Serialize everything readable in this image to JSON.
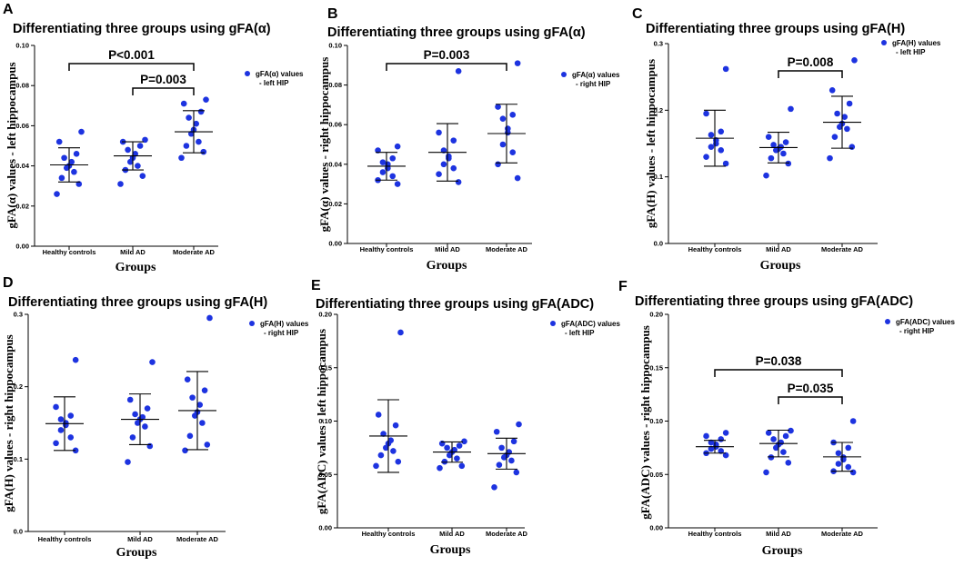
{
  "chart_data": [
    {
      "type": "scatter",
      "panel": "A",
      "title": "Differentiating three groups using gFA(α)",
      "xlabel": "Groups",
      "ylabel": "gFA(α) values - left hippocampus",
      "categories": [
        "Healthy controls",
        "Mild AD",
        "Moderate AD"
      ],
      "ylim": [
        0,
        0.1
      ],
      "ytick_labels": [
        "0.00",
        "0.02",
        "0.04",
        "0.06",
        "0.08",
        "0.10"
      ],
      "legend": "gFA(α) values - left HIP",
      "series": [
        {
          "name": "Healthy controls",
          "values": [
            0.057,
            0.052,
            0.046,
            0.044,
            0.042,
            0.04,
            0.039,
            0.037,
            0.034,
            0.031,
            0.026
          ],
          "mean": 0.0405,
          "sd": 0.0085
        },
        {
          "name": "Mild AD",
          "values": [
            0.053,
            0.052,
            0.05,
            0.048,
            0.046,
            0.044,
            0.042,
            0.04,
            0.038,
            0.035,
            0.031
          ],
          "mean": 0.045,
          "sd": 0.007
        },
        {
          "name": "Moderate AD",
          "values": [
            0.073,
            0.071,
            0.067,
            0.064,
            0.061,
            0.058,
            0.056,
            0.052,
            0.05,
            0.047,
            0.044
          ],
          "mean": 0.057,
          "sd": 0.0105
        }
      ],
      "significance": [
        {
          "from": 0,
          "to": 2,
          "label": "P<0.001"
        },
        {
          "from": 1,
          "to": 2,
          "label": "P=0.003"
        }
      ]
    },
    {
      "type": "scatter",
      "panel": "B",
      "title": "Differentiating three groups using gFA(α)",
      "xlabel": "Groups",
      "ylabel": "gFA(α) values - right hippocampus",
      "categories": [
        "Healthy controls",
        "Mild AD",
        "Moderate AD"
      ],
      "ylim": [
        0,
        0.1
      ],
      "ytick_labels": [
        "0.00",
        "0.02",
        "0.04",
        "0.06",
        "0.08",
        "0.10"
      ],
      "legend": "gFA(α) values - right HIP",
      "series": [
        {
          "name": "Healthy controls",
          "values": [
            0.049,
            0.047,
            0.043,
            0.041,
            0.04,
            0.038,
            0.036,
            0.034,
            0.032,
            0.03
          ],
          "mean": 0.039,
          "sd": 0.007
        },
        {
          "name": "Mild AD",
          "values": [
            0.087,
            0.056,
            0.052,
            0.047,
            0.044,
            0.043,
            0.04,
            0.038,
            0.035,
            0.031
          ],
          "mean": 0.046,
          "sd": 0.0145
        },
        {
          "name": "Moderate AD",
          "values": [
            0.091,
            0.069,
            0.065,
            0.063,
            0.058,
            0.056,
            0.05,
            0.046,
            0.04,
            0.033
          ],
          "mean": 0.0555,
          "sd": 0.0148
        }
      ],
      "significance": [
        {
          "from": 0,
          "to": 2,
          "label": "P=0.003"
        }
      ]
    },
    {
      "type": "scatter",
      "panel": "C",
      "title": "Differentiating three groups using gFA(H)",
      "xlabel": "Groups",
      "ylabel": "gFA(H) values - left hippocampus",
      "categories": [
        "Healthy controls",
        "Mild AD",
        "Moderate AD"
      ],
      "ylim": [
        0,
        0.3
      ],
      "ytick_labels": [
        "0.0",
        "0.1",
        "0.2",
        "0.3"
      ],
      "legend": "gFA(H) values - left HIP",
      "series": [
        {
          "name": "Healthy controls",
          "values": [
            0.262,
            0.195,
            0.168,
            0.163,
            0.155,
            0.15,
            0.145,
            0.14,
            0.13,
            0.12
          ],
          "mean": 0.158,
          "sd": 0.042
        },
        {
          "name": "Mild AD",
          "values": [
            0.202,
            0.16,
            0.152,
            0.148,
            0.145,
            0.142,
            0.14,
            0.135,
            0.128,
            0.12,
            0.102
          ],
          "mean": 0.144,
          "sd": 0.023
        },
        {
          "name": "Moderate AD",
          "values": [
            0.275,
            0.23,
            0.21,
            0.195,
            0.19,
            0.18,
            0.175,
            0.172,
            0.16,
            0.145,
            0.128
          ],
          "mean": 0.182,
          "sd": 0.039
        }
      ],
      "significance": [
        {
          "from": 1,
          "to": 2,
          "label": "P=0.008"
        }
      ]
    },
    {
      "type": "scatter",
      "panel": "D",
      "title": "Differentiating three groups using gFA(H)",
      "xlabel": "Groups",
      "ylabel": "gFA(H) values - right hippocampus",
      "categories": [
        "Healthy controls",
        "Mild AD",
        "Moderate AD"
      ],
      "ylim": [
        0,
        0.3
      ],
      "ytick_labels": [
        "0.0",
        "0.1",
        "0.2",
        "0.3"
      ],
      "legend": "gFA(H) values - right HIP",
      "series": [
        {
          "name": "Healthy controls",
          "values": [
            0.237,
            0.172,
            0.16,
            0.155,
            0.15,
            0.147,
            0.14,
            0.13,
            0.122,
            0.112
          ],
          "mean": 0.149,
          "sd": 0.037
        },
        {
          "name": "Mild AD",
          "values": [
            0.234,
            0.182,
            0.17,
            0.162,
            0.158,
            0.155,
            0.15,
            0.145,
            0.13,
            0.118,
            0.096
          ],
          "mean": 0.155,
          "sd": 0.035
        },
        {
          "name": "Moderate AD",
          "values": [
            0.295,
            0.21,
            0.195,
            0.185,
            0.175,
            0.165,
            0.16,
            0.15,
            0.132,
            0.12,
            0.112
          ],
          "mean": 0.167,
          "sd": 0.054
        }
      ],
      "significance": []
    },
    {
      "type": "scatter",
      "panel": "E",
      "title": "Differentiating three groups using gFA(ADC)",
      "xlabel": "Groups",
      "ylabel": "gFA(ADC) values - left hippocampus",
      "categories": [
        "Healthy controls",
        "Mild AD",
        "Moderate AD"
      ],
      "ylim": [
        0,
        0.2
      ],
      "ytick_labels": [
        "0.00",
        "0.05",
        "0.10",
        "0.15",
        "0.20"
      ],
      "legend": "gFA(ADC) values - left HIP",
      "series": [
        {
          "name": "Healthy controls",
          "values": [
            0.183,
            0.106,
            0.096,
            0.088,
            0.082,
            0.079,
            0.075,
            0.072,
            0.068,
            0.062,
            0.058
          ],
          "mean": 0.086,
          "sd": 0.034
        },
        {
          "name": "Mild AD",
          "values": [
            0.081,
            0.079,
            0.077,
            0.075,
            0.073,
            0.071,
            0.068,
            0.065,
            0.062,
            0.058,
            0.056
          ],
          "mean": 0.071,
          "sd": 0.0095
        },
        {
          "name": "Moderate AD",
          "values": [
            0.097,
            0.09,
            0.081,
            0.075,
            0.071,
            0.068,
            0.066,
            0.063,
            0.059,
            0.052,
            0.038
          ],
          "mean": 0.0695,
          "sd": 0.0145
        }
      ],
      "significance": []
    },
    {
      "type": "scatter",
      "panel": "F",
      "title": "Differentiating three groups using gFA(ADC)",
      "xlabel": "Groups",
      "ylabel": "gFA(ADC) values - right hippocampus",
      "categories": [
        "Healthy controls",
        "Mild AD",
        "Moderate AD"
      ],
      "ylim": [
        0,
        0.2
      ],
      "ytick_labels": [
        "0.00",
        "0.05",
        "0.10",
        "0.15",
        "0.20"
      ],
      "legend": "gFA(ADC) values - right HIP",
      "series": [
        {
          "name": "Healthy controls",
          "values": [
            0.089,
            0.086,
            0.083,
            0.08,
            0.078,
            0.076,
            0.074,
            0.072,
            0.07,
            0.068
          ],
          "mean": 0.076,
          "sd": 0.006
        },
        {
          "name": "Mild AD",
          "values": [
            0.091,
            0.089,
            0.086,
            0.083,
            0.08,
            0.078,
            0.075,
            0.071,
            0.066,
            0.061,
            0.052
          ],
          "mean": 0.079,
          "sd": 0.0125
        },
        {
          "name": "Moderate AD",
          "values": [
            0.1,
            0.08,
            0.075,
            0.07,
            0.066,
            0.064,
            0.06,
            0.057,
            0.053,
            0.052
          ],
          "mean": 0.0665,
          "sd": 0.0135
        }
      ],
      "significance": [
        {
          "from": 0,
          "to": 2,
          "label": "P=0.038"
        },
        {
          "from": 1,
          "to": 2,
          "label": "P=0.035"
        }
      ]
    }
  ],
  "colors": {
    "point": "#1d33e0",
    "axis": "#000000"
  }
}
